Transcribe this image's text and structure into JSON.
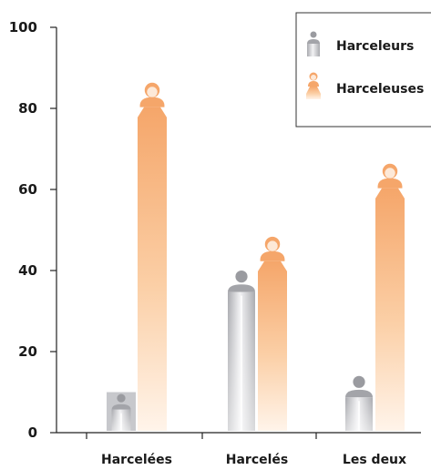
{
  "chart_data": {
    "type": "bar",
    "title": "",
    "xlabel": "",
    "ylabel": "",
    "ylim": [
      0,
      100
    ],
    "yticks": [
      0,
      20,
      40,
      60,
      80,
      100
    ],
    "grid": false,
    "legend_position": "top-right",
    "categories": [
      "Harcelées",
      "Harcelés",
      "Les deux"
    ],
    "series": [
      {
        "name": "Harceleurs",
        "values": [
          10,
          40,
          14
        ],
        "color": "#9a9ba0",
        "icon": "male-person-icon"
      },
      {
        "name": "Harceleuses",
        "values": [
          86,
          48,
          66
        ],
        "color": "#f5a76a",
        "icon": "female-person-icon"
      }
    ]
  }
}
